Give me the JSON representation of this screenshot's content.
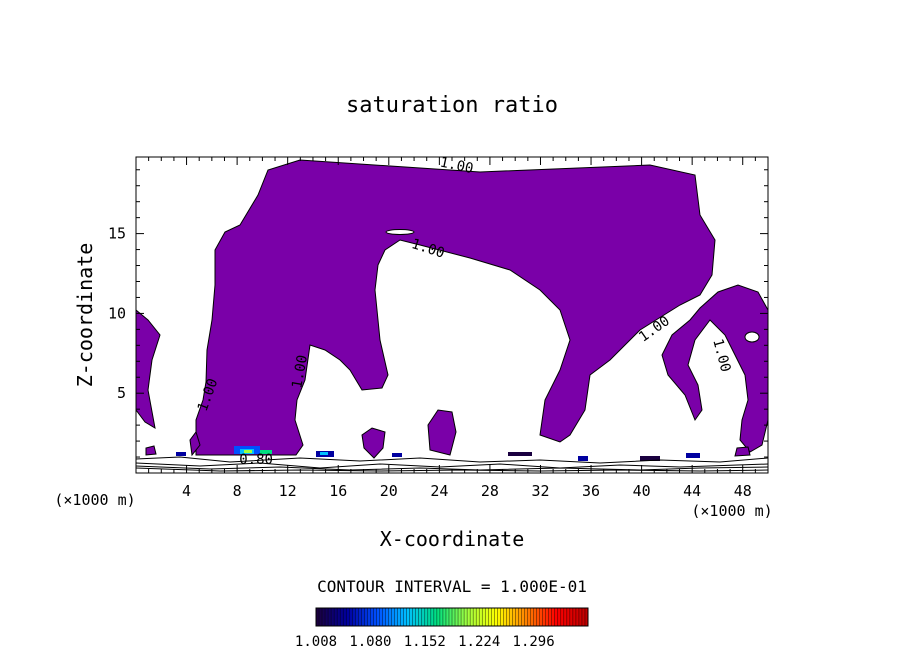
{
  "chart_data": {
    "type": "filled-contour",
    "title": "saturation ratio",
    "xlabel": "X-coordinate",
    "ylabel": "Z-coordinate",
    "x_units_left": "(×1000 m)",
    "x_units_right": "(×1000 m)",
    "xlim": [
      0,
      50
    ],
    "ylim": [
      0,
      19.8
    ],
    "xticks": [
      4,
      8,
      12,
      16,
      20,
      24,
      28,
      32,
      36,
      40,
      44,
      48
    ],
    "yticks": [
      5,
      10,
      15
    ],
    "contour_interval_text": "CONTOUR INTERVAL = 1.000E-01",
    "contour_labels": [
      {
        "text": "1.00",
        "x": 25.3,
        "y": 19.0,
        "angle": 12
      },
      {
        "text": "1.00",
        "x": 23.0,
        "y": 13.8,
        "angle": 18
      },
      {
        "text": "1.00",
        "x": 41.2,
        "y": 8.8,
        "angle": -35
      },
      {
        "text": "1.00",
        "x": 46.0,
        "y": 7.3,
        "angle": 75
      },
      {
        "text": "1.00",
        "x": 13.3,
        "y": 6.3,
        "angle": -80
      },
      {
        "text": "1.00",
        "x": 6.0,
        "y": 4.8,
        "angle": -70
      },
      {
        "text": "0.80",
        "x": 9.5,
        "y": 0.55,
        "angle": 0
      }
    ],
    "colorbar": {
      "ticks": [
        "1.008",
        "1.080",
        "1.152",
        "1.224",
        "1.296"
      ],
      "min": 1.008,
      "max": 1.368,
      "colors": [
        "#1a0040",
        "#0000a0",
        "#0050ff",
        "#00c0ff",
        "#00e080",
        "#a0ff40",
        "#ffff00",
        "#ff8000",
        "#ff0000",
        "#c00000"
      ]
    },
    "fill_color": "#7a00a8"
  }
}
